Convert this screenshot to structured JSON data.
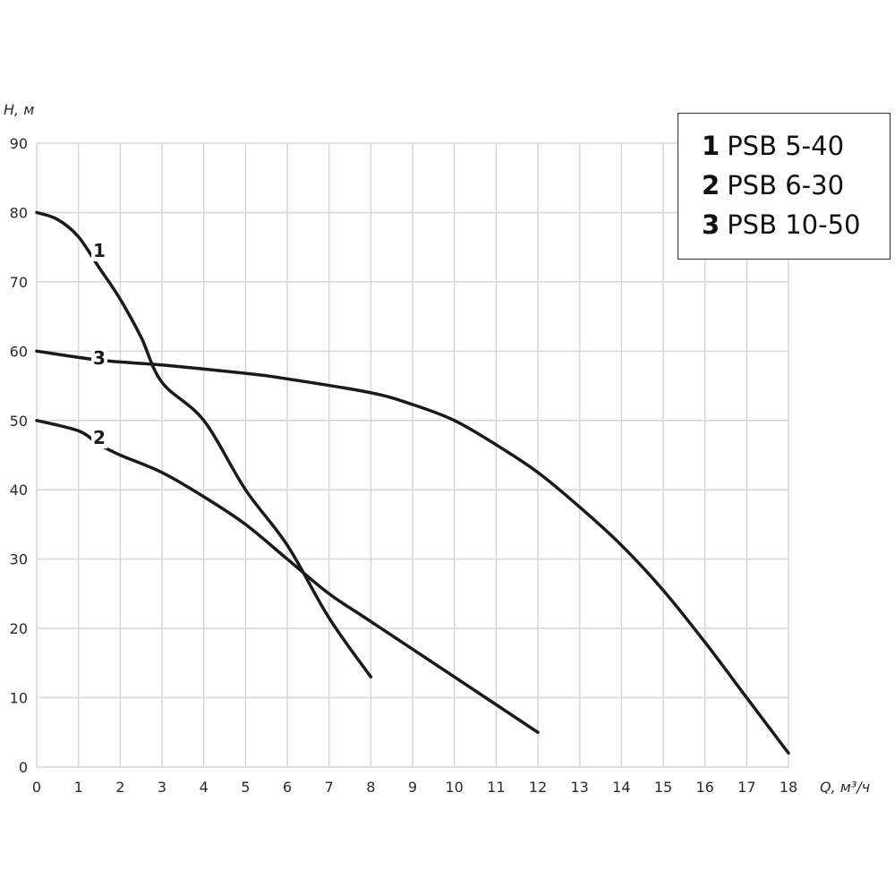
{
  "chart_data": {
    "type": "line",
    "xlabel": "Q, м³/ч",
    "ylabel": "H, м",
    "xlim": [
      0,
      18
    ],
    "ylim": [
      0,
      90
    ],
    "x_ticks": [
      0,
      1,
      2,
      3,
      4,
      5,
      6,
      7,
      8,
      9,
      10,
      11,
      12,
      13,
      14,
      15,
      16,
      17,
      18
    ],
    "y_ticks": [
      0,
      10,
      20,
      30,
      40,
      50,
      60,
      70,
      80,
      90
    ],
    "grid": true,
    "legend_position": "top-right",
    "series": [
      {
        "id": "1",
        "name": "PSB 5-40",
        "label": "1",
        "points": [
          [
            0,
            80
          ],
          [
            0.5,
            79
          ],
          [
            1,
            76.5
          ],
          [
            1.5,
            72
          ],
          [
            2,
            67.5
          ],
          [
            2.5,
            62
          ],
          [
            3,
            55.5
          ],
          [
            4,
            50
          ],
          [
            5,
            40
          ],
          [
            6,
            32
          ],
          [
            7,
            21.5
          ],
          [
            8,
            13
          ]
        ]
      },
      {
        "id": "2",
        "name": "PSB 6-30",
        "label": "2",
        "points": [
          [
            0,
            50
          ],
          [
            1,
            48.5
          ],
          [
            1.5,
            46.5
          ],
          [
            2,
            45
          ],
          [
            3,
            42.5
          ],
          [
            4,
            39
          ],
          [
            5,
            35
          ],
          [
            6,
            30
          ],
          [
            7,
            25
          ],
          [
            8,
            21
          ],
          [
            10,
            13
          ],
          [
            12,
            5
          ]
        ]
      },
      {
        "id": "3",
        "name": "PSB 10-50",
        "label": "3",
        "points": [
          [
            0,
            60
          ],
          [
            1.5,
            58.7
          ],
          [
            3,
            58
          ],
          [
            5,
            56.8
          ],
          [
            6,
            56
          ],
          [
            8,
            54
          ],
          [
            9,
            52.3
          ],
          [
            10,
            50
          ],
          [
            11,
            46.5
          ],
          [
            12,
            42.5
          ],
          [
            13,
            37.5
          ],
          [
            14,
            32
          ],
          [
            15,
            25.5
          ],
          [
            16,
            18
          ],
          [
            17,
            10
          ],
          [
            18,
            2
          ]
        ]
      }
    ]
  }
}
